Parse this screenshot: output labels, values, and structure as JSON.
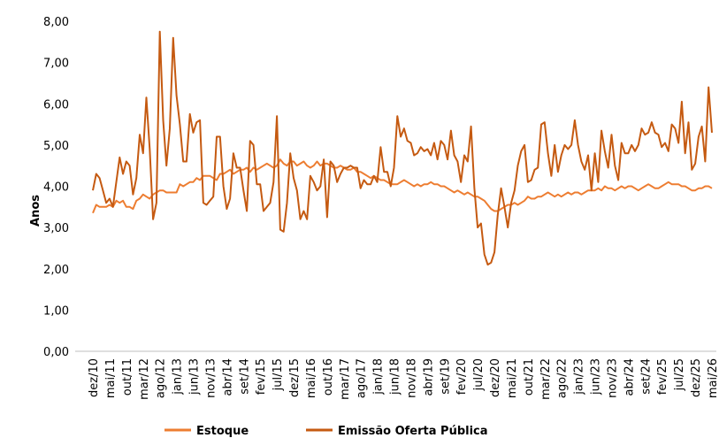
{
  "chart_data": {
    "type": "line",
    "y_label": "Anos",
    "ylim": [
      0,
      8
    ],
    "yticks": [
      {
        "value": 0,
        "label": "0,00"
      },
      {
        "value": 1,
        "label": "1,00"
      },
      {
        "value": 2,
        "label": "2,00"
      },
      {
        "value": 3,
        "label": "3,00"
      },
      {
        "value": 4,
        "label": "4,00"
      },
      {
        "value": 5,
        "label": "5,00"
      },
      {
        "value": 6,
        "label": "6,00"
      },
      {
        "value": 7,
        "label": "7,00"
      },
      {
        "value": 8,
        "label": "8,00"
      }
    ],
    "legend": "bottom",
    "categories": [
      "dez/10",
      null,
      null,
      null,
      null,
      "mai/11",
      null,
      null,
      null,
      null,
      "out/11",
      null,
      null,
      null,
      null,
      "mar/12",
      null,
      null,
      null,
      null,
      "ago/12",
      null,
      null,
      null,
      null,
      "jan/13",
      null,
      null,
      null,
      null,
      "jun/13",
      null,
      null,
      null,
      null,
      "nov/13",
      null,
      null,
      null,
      null,
      "abr/14",
      null,
      null,
      null,
      null,
      "set/14",
      null,
      null,
      null,
      null,
      "fev/15",
      null,
      null,
      null,
      null,
      "jul/15",
      null,
      null,
      null,
      null,
      "dez/15",
      null,
      null,
      null,
      null,
      "mai/16",
      null,
      null,
      null,
      null,
      "out/16",
      null,
      null,
      null,
      null,
      "mar/17",
      null,
      null,
      null,
      null,
      "ago/17",
      null,
      null,
      null,
      null,
      "jan/18",
      null,
      null,
      null,
      null,
      "jun/18",
      null,
      null,
      null,
      null,
      "nov/18",
      null,
      null,
      null,
      null,
      "abr/19",
      null,
      null,
      null,
      null,
      "set/19",
      null,
      null,
      null,
      null,
      "fev/20",
      null,
      null,
      null,
      null,
      "jul/20",
      null,
      null,
      null,
      null,
      "dez/20",
      null,
      null,
      null,
      null,
      "mai/21",
      null,
      null,
      null,
      null,
      "out/21",
      null,
      null,
      null,
      null,
      "mar/22",
      null,
      null,
      null,
      null,
      "ago/22",
      null,
      null,
      null,
      null,
      "jan/23",
      null,
      null,
      null,
      null,
      "jun/23",
      null,
      null,
      null,
      null,
      "nov/23",
      null,
      null,
      null,
      null,
      "abr/24",
      null,
      null,
      null,
      null,
      "set/24",
      null,
      null,
      null,
      null,
      "fev/25",
      null,
      null,
      null,
      null,
      "jul/25",
      null,
      null,
      null,
      null,
      "dez/25",
      null,
      null,
      null,
      null,
      "mai/26"
    ],
    "series": [
      {
        "name": "Estoque",
        "color": "#ED7D31",
        "values": [
          3.35,
          3.55,
          3.5,
          3.5,
          3.5,
          3.55,
          3.5,
          3.65,
          3.6,
          3.65,
          3.5,
          3.5,
          3.45,
          3.65,
          3.7,
          3.8,
          3.75,
          3.7,
          3.8,
          3.85,
          3.9,
          3.9,
          3.85,
          3.85,
          3.85,
          3.85,
          4.05,
          4.0,
          4.05,
          4.1,
          4.1,
          4.2,
          4.15,
          4.25,
          4.25,
          4.25,
          4.2,
          4.15,
          4.3,
          4.3,
          4.35,
          4.4,
          4.3,
          4.35,
          4.4,
          4.4,
          4.45,
          4.35,
          4.45,
          4.4,
          4.45,
          4.5,
          4.55,
          4.5,
          4.45,
          4.5,
          4.65,
          4.55,
          4.5,
          4.6,
          4.6,
          4.5,
          4.55,
          4.6,
          4.5,
          4.45,
          4.5,
          4.6,
          4.5,
          4.55,
          4.55,
          4.5,
          4.45,
          4.45,
          4.5,
          4.45,
          4.4,
          4.4,
          4.45,
          4.35,
          4.35,
          4.3,
          4.25,
          4.2,
          4.25,
          4.2,
          4.15,
          4.15,
          4.1,
          4.05,
          4.05,
          4.05,
          4.1,
          4.15,
          4.1,
          4.05,
          4.0,
          4.05,
          4.0,
          4.05,
          4.05,
          4.1,
          4.05,
          4.05,
          4.0,
          4.0,
          3.95,
          3.9,
          3.85,
          3.9,
          3.85,
          3.8,
          3.85,
          3.8,
          3.75,
          3.75,
          3.7,
          3.65,
          3.55,
          3.45,
          3.4,
          3.4,
          3.45,
          3.5,
          3.55,
          3.55,
          3.6,
          3.55,
          3.6,
          3.65,
          3.75,
          3.7,
          3.7,
          3.75,
          3.75,
          3.8,
          3.85,
          3.8,
          3.75,
          3.8,
          3.75,
          3.8,
          3.85,
          3.8,
          3.85,
          3.85,
          3.8,
          3.85,
          3.9,
          3.9,
          3.9,
          3.95,
          3.9,
          4.0,
          3.95,
          3.95,
          3.9,
          3.95,
          4.0,
          3.95,
          4.0,
          4.0,
          3.95,
          3.9,
          3.95,
          4.0,
          4.05,
          4.0,
          3.95,
          3.95,
          4.0,
          4.05,
          4.1,
          4.05,
          4.05,
          4.05,
          4.0,
          4.0,
          3.95,
          3.9,
          3.9,
          3.95,
          3.95,
          4.0,
          4.0,
          3.95
        ]
      },
      {
        "name": "Emissão Oferta Pública",
        "color": "#C55A11",
        "values": [
          3.9,
          4.3,
          4.2,
          3.9,
          3.6,
          3.7,
          3.5,
          4.1,
          4.7,
          4.3,
          4.6,
          4.5,
          3.8,
          4.2,
          5.25,
          4.8,
          6.15,
          4.9,
          3.2,
          3.6,
          7.75,
          5.6,
          4.5,
          5.4,
          7.6,
          6.2,
          5.5,
          4.6,
          4.6,
          5.75,
          5.3,
          5.55,
          5.6,
          3.6,
          3.55,
          3.65,
          3.75,
          5.2,
          5.2,
          4.0,
          3.45,
          3.7,
          4.8,
          4.45,
          4.45,
          3.9,
          3.4,
          5.1,
          5.0,
          4.05,
          4.05,
          3.4,
          3.5,
          3.6,
          4.1,
          5.7,
          2.95,
          2.9,
          3.6,
          4.8,
          4.2,
          3.9,
          3.2,
          3.4,
          3.2,
          4.25,
          4.1,
          3.9,
          4.0,
          4.65,
          3.25,
          4.6,
          4.5,
          4.1,
          4.3,
          4.45,
          4.45,
          4.5,
          4.45,
          4.45,
          3.95,
          4.15,
          4.05,
          4.05,
          4.25,
          4.1,
          4.95,
          4.35,
          4.35,
          4.0,
          4.45,
          5.7,
          5.2,
          5.4,
          5.1,
          5.05,
          4.75,
          4.8,
          4.95,
          4.85,
          4.9,
          4.75,
          5.05,
          4.65,
          5.1,
          5.0,
          4.65,
          5.35,
          4.75,
          4.6,
          4.1,
          4.75,
          4.6,
          5.45,
          3.95,
          3.0,
          3.1,
          2.35,
          2.1,
          2.15,
          2.4,
          3.3,
          3.95,
          3.5,
          3.0,
          3.6,
          3.9,
          4.5,
          4.85,
          5.0,
          4.1,
          4.15,
          4.4,
          4.45,
          5.5,
          5.55,
          4.8,
          4.25,
          5.0,
          4.35,
          4.75,
          5.0,
          4.9,
          5.0,
          5.6,
          5.0,
          4.6,
          4.4,
          4.75,
          3.9,
          4.8,
          4.1,
          5.35,
          4.85,
          4.45,
          5.25,
          4.5,
          4.15,
          5.05,
          4.8,
          4.8,
          5.0,
          4.85,
          5.0,
          5.4,
          5.25,
          5.3,
          5.55,
          5.3,
          5.25,
          4.95,
          5.05,
          4.85,
          5.5,
          5.4,
          5.05,
          6.05,
          4.8,
          5.55,
          4.4,
          4.55,
          5.2,
          5.45,
          4.6,
          6.4,
          5.3
        ]
      }
    ]
  }
}
